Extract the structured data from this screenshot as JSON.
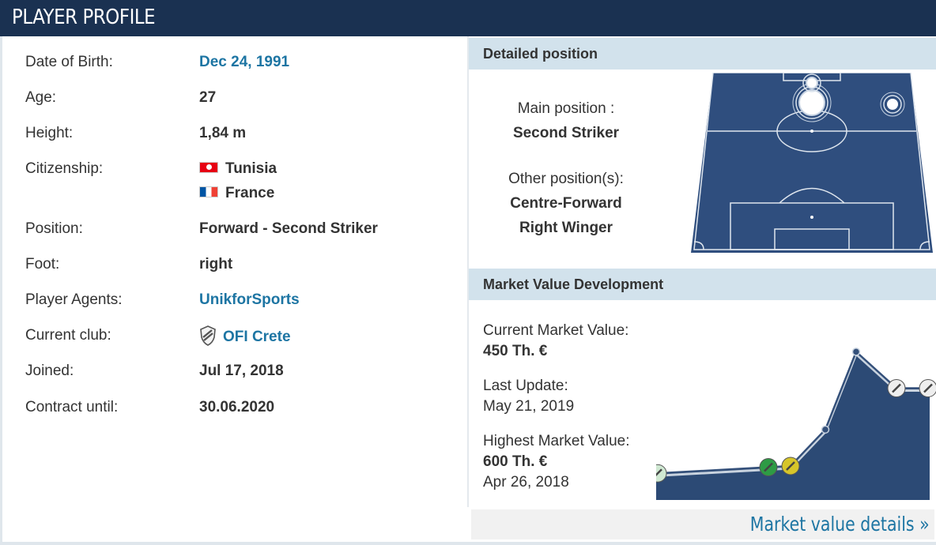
{
  "header": {
    "title": "PLAYER PROFILE"
  },
  "profile": {
    "dob_label": "Date of Birth:",
    "dob": "Dec 24, 1991",
    "age_label": "Age:",
    "age": "27",
    "height_label": "Height:",
    "height": "1,84 m",
    "citizenship_label": "Citizenship:",
    "citizenship": [
      {
        "country": "Tunisia",
        "flag": "flag-tunisia-icon"
      },
      {
        "country": "France",
        "flag": "flag-france-icon"
      }
    ],
    "position_label": "Position:",
    "position": "Forward - Second Striker",
    "foot_label": "Foot:",
    "foot": "right",
    "agents_label": "Player Agents:",
    "agents": "UnikforSports",
    "club_label": "Current club:",
    "club": "OFI Crete",
    "joined_label": "Joined:",
    "joined": "Jul 17, 2018",
    "contract_label": "Contract until:",
    "contract": "30.06.2020"
  },
  "detailed_position": {
    "heading": "Detailed position",
    "main_label": "Main position :",
    "main": "Second Striker",
    "other_label": "Other position(s):",
    "others": [
      "Centre-Forward",
      "Right Winger"
    ],
    "pitch_color": "#2f4e7e"
  },
  "market_value": {
    "heading": "Market Value Development",
    "current_label": "Current Market Value:",
    "current": "450 Th. €",
    "updated_label": "Last Update:",
    "updated": "May 21, 2019",
    "highest_label": "Highest Market Value:",
    "highest": "600 Th. €",
    "highest_date": "Apr 26, 2018",
    "details_link": "Market value details »"
  },
  "chart_data": {
    "type": "area",
    "color": "#2c4a75",
    "series": [
      {
        "values": [
          100,
          125,
          130,
          280,
          600,
          450,
          450
        ]
      }
    ],
    "ylim": [
      0,
      650
    ]
  }
}
